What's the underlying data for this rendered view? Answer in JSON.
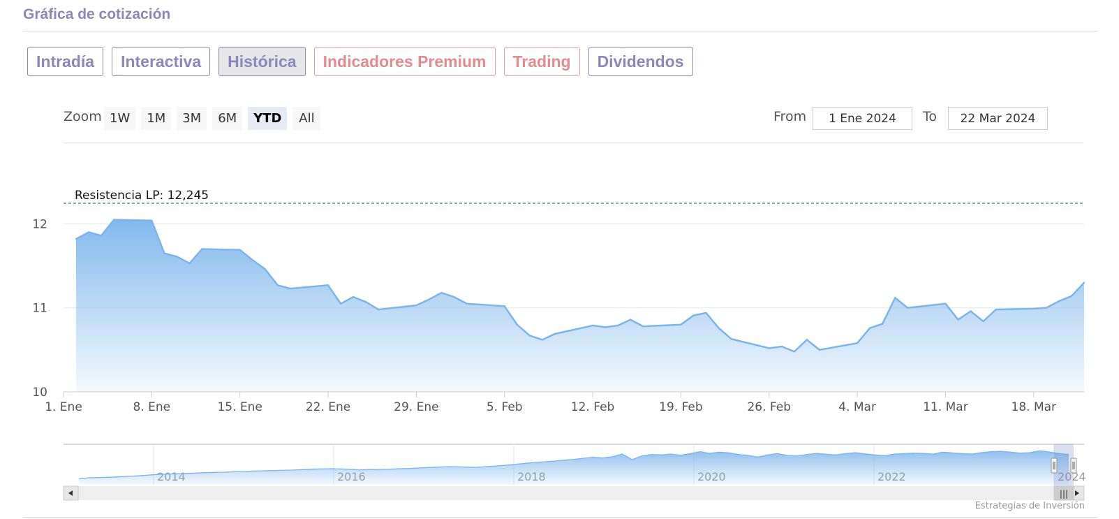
{
  "header": {
    "title": "Gráfica de cotización"
  },
  "tabs": [
    {
      "label": "Intradía",
      "state": "normal"
    },
    {
      "label": "Interactiva",
      "state": "normal"
    },
    {
      "label": "Histórica",
      "state": "active"
    },
    {
      "label": "Indicadores Premium",
      "state": "premium"
    },
    {
      "label": "Trading",
      "state": "premium"
    },
    {
      "label": "Dividendos",
      "state": "normal"
    }
  ],
  "zoom": {
    "label": "Zoom",
    "buttons": [
      "1W",
      "1M",
      "3M",
      "6M",
      "YTD",
      "All"
    ],
    "selected": "YTD"
  },
  "range": {
    "from_label": "From",
    "from_value": "1 Ene 2024",
    "to_label": "To",
    "to_value": "22 Mar 2024"
  },
  "colors": {
    "accent": "#8c87bb",
    "premium": "#e48b8b",
    "series_line": "#7cb5ec",
    "resistance": "#2e8b3e"
  },
  "chart_data": {
    "type": "area",
    "yticks": [
      10,
      11,
      12
    ],
    "ylim": [
      10,
      12.245
    ],
    "xticks": [
      "1. Ene",
      "8. Ene",
      "15. Ene",
      "22. Ene",
      "29. Ene",
      "5. Feb",
      "12. Feb",
      "19. Feb",
      "26. Feb",
      "4. Mar",
      "11. Mar",
      "18. Mar"
    ],
    "annotation": {
      "label": "Resistencia LP: 12,245",
      "value": 12.245
    },
    "series": [
      {
        "x": [
          "2024-01-02",
          "2024-01-03",
          "2024-01-04",
          "2024-01-05",
          "2024-01-08",
          "2024-01-09",
          "2024-01-10",
          "2024-01-11",
          "2024-01-12",
          "2024-01-15",
          "2024-01-16",
          "2024-01-17",
          "2024-01-18",
          "2024-01-19",
          "2024-01-22",
          "2024-01-23",
          "2024-01-24",
          "2024-01-25",
          "2024-01-26",
          "2024-01-29",
          "2024-01-30",
          "2024-01-31",
          "2024-02-01",
          "2024-02-02",
          "2024-02-05",
          "2024-02-06",
          "2024-02-07",
          "2024-02-08",
          "2024-02-09",
          "2024-02-12",
          "2024-02-13",
          "2024-02-14",
          "2024-02-15",
          "2024-02-16",
          "2024-02-19",
          "2024-02-20",
          "2024-02-21",
          "2024-02-22",
          "2024-02-23",
          "2024-02-26",
          "2024-02-27",
          "2024-02-28",
          "2024-02-29",
          "2024-03-01",
          "2024-03-04",
          "2024-03-05",
          "2024-03-06",
          "2024-03-07",
          "2024-03-08",
          "2024-03-11",
          "2024-03-12",
          "2024-03-13",
          "2024-03-14",
          "2024-03-15",
          "2024-03-18",
          "2024-03-19",
          "2024-03-20",
          "2024-03-21",
          "2024-03-22"
        ],
        "values": [
          11.82,
          11.9,
          11.86,
          12.05,
          12.04,
          11.65,
          11.61,
          11.53,
          11.7,
          11.69,
          11.57,
          11.46,
          11.27,
          11.23,
          11.27,
          11.05,
          11.13,
          11.07,
          10.98,
          11.03,
          11.1,
          11.18,
          11.13,
          11.05,
          11.02,
          10.8,
          10.67,
          10.62,
          10.69,
          10.79,
          10.77,
          10.79,
          10.86,
          10.78,
          10.8,
          10.91,
          10.94,
          10.76,
          10.63,
          10.52,
          10.54,
          10.48,
          10.62,
          10.5,
          10.58,
          10.76,
          10.81,
          11.12,
          11.0,
          11.05,
          10.86,
          10.96,
          10.84,
          10.98,
          10.99,
          11.0,
          11.08,
          11.14,
          11.3
        ]
      }
    ],
    "navigator": {
      "labels": [
        "2014",
        "2016",
        "2018",
        "2020",
        "2022",
        "2024"
      ],
      "values": [
        2.0,
        2.4,
        2.5,
        2.6,
        2.8,
        3.0,
        3.2,
        3.5,
        3.8,
        4.0,
        4.1,
        4.3,
        4.4,
        4.6,
        4.7,
        4.8,
        5.0,
        5.1,
        5.3,
        5.4,
        5.5,
        5.6,
        5.7,
        5.9,
        6.1,
        6.2,
        6.3,
        6.2,
        6.0,
        5.8,
        5.9,
        6.0,
        6.1,
        6.3,
        6.4,
        6.6,
        6.8,
        7.0,
        7.2,
        7.1,
        7.0,
        6.9,
        7.2,
        7.5,
        7.8,
        8.2,
        8.6,
        9.0,
        9.3,
        9.6,
        10.0,
        10.3,
        10.8,
        11.2,
        10.9,
        11.5,
        12.6,
        10.2,
        11.8,
        12.4,
        12.2,
        12.6,
        12.1,
        12.8,
        13.6,
        12.9,
        13.4,
        13.1,
        12.4,
        12.0,
        11.3,
        12.2,
        12.8,
        12.0,
        11.8,
        12.4,
        12.9,
        12.5,
        12.2,
        12.8,
        13.2,
        12.7,
        12.2,
        11.9,
        12.6,
        12.8,
        13.0,
        12.9,
        12.6,
        13.4,
        13.1,
        12.8,
        12.6,
        13.2,
        13.6,
        13.8,
        13.4,
        13.0,
        13.2,
        14.0,
        13.5,
        12.8,
        12.4
      ]
    }
  },
  "navigator": {
    "left_button": "◀",
    "right_button": "▶",
    "handle_glyph": "|||"
  },
  "credits": "Estrategias de Inversión"
}
